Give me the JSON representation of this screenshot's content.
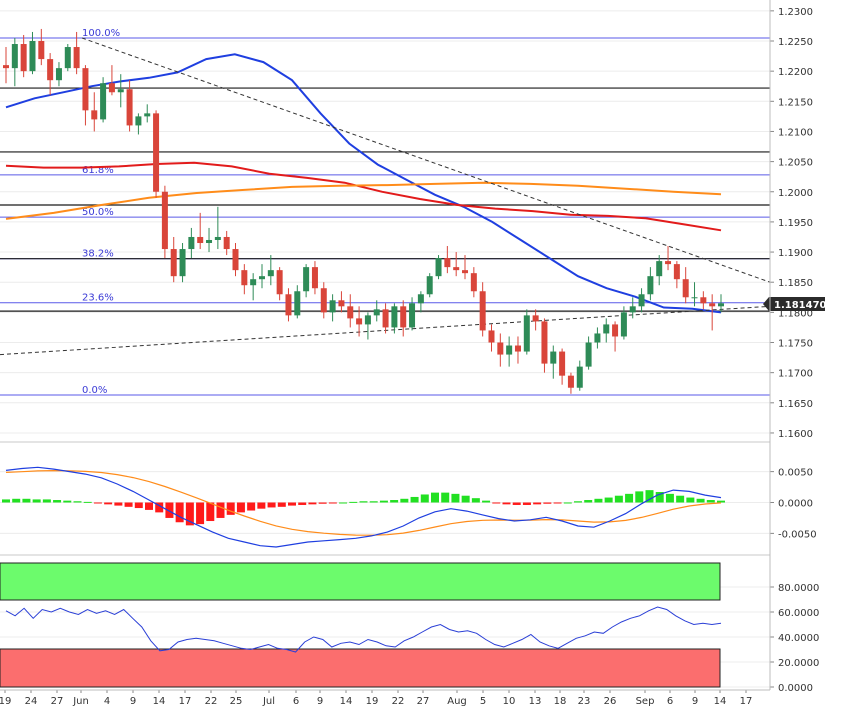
{
  "chart_data": [
    {
      "type": "candlestick",
      "pair_price_current": "1.181470",
      "y_ticks": [
        "1.2300",
        "1.2250",
        "1.2200",
        "1.2150",
        "1.2100",
        "1.2050",
        "1.2000",
        "1.1950",
        "1.1900",
        "1.1850",
        "1.1800",
        "1.1750",
        "1.1700",
        "1.1650",
        "1.1600"
      ],
      "ylim": [
        1.1585,
        1.2318
      ],
      "x_tick_labels": [
        "19",
        "24",
        "27",
        "Jun",
        "4",
        "9",
        "14",
        "17",
        "22",
        "25",
        "Jul",
        "6",
        "9",
        "14",
        "19",
        "22",
        "27",
        "Aug",
        "5",
        "10",
        "13",
        "18",
        "23",
        "26",
        "Sep",
        "6",
        "9",
        "14",
        "17"
      ],
      "fib_levels": [
        {
          "label": "100.0%",
          "price": 1.2255
        },
        {
          "label": "61.8%",
          "price": 1.2028
        },
        {
          "label": "50.0%",
          "price": 1.1958
        },
        {
          "label": "38.2%",
          "price": 1.1889
        },
        {
          "label": "23.6%",
          "price": 1.1816
        },
        {
          "label": "0.0%",
          "price": 1.1663
        }
      ],
      "horizontal_levels": [
        1.2172,
        1.2066,
        1.1978,
        1.1889,
        1.1802
      ],
      "candles": [
        [
          1.221,
          1.224,
          1.218,
          1.2205
        ],
        [
          1.2205,
          1.2255,
          1.2175,
          1.2245
        ],
        [
          1.2245,
          1.226,
          1.219,
          1.22
        ],
        [
          1.22,
          1.2265,
          1.2195,
          1.225
        ],
        [
          1.225,
          1.227,
          1.221,
          1.222
        ],
        [
          1.222,
          1.223,
          1.216,
          1.2185
        ],
        [
          1.2185,
          1.2215,
          1.2175,
          1.2205
        ],
        [
          1.2205,
          1.2245,
          1.22,
          1.224
        ],
        [
          1.224,
          1.2265,
          1.2195,
          1.2205
        ],
        [
          1.2205,
          1.221,
          1.211,
          1.2135
        ],
        [
          1.2135,
          1.2165,
          1.21,
          1.212
        ],
        [
          1.212,
          1.219,
          1.2115,
          1.218
        ],
        [
          1.218,
          1.221,
          1.216,
          1.2165
        ],
        [
          1.2165,
          1.2195,
          1.214,
          1.217
        ],
        [
          1.217,
          1.2185,
          1.21,
          1.211
        ],
        [
          1.211,
          1.213,
          1.2095,
          1.2125
        ],
        [
          1.2125,
          1.2145,
          1.2115,
          1.213
        ],
        [
          1.213,
          1.2135,
          1.199,
          1.2
        ],
        [
          1.2,
          1.201,
          1.189,
          1.1905
        ],
        [
          1.1905,
          1.1925,
          1.185,
          1.186
        ],
        [
          1.186,
          1.1915,
          1.185,
          1.1905
        ],
        [
          1.1905,
          1.194,
          1.189,
          1.1925
        ],
        [
          1.1925,
          1.1965,
          1.1905,
          1.1915
        ],
        [
          1.1915,
          1.194,
          1.19,
          1.192
        ],
        [
          1.192,
          1.1975,
          1.1905,
          1.1925
        ],
        [
          1.1925,
          1.1935,
          1.1895,
          1.1905
        ],
        [
          1.1905,
          1.1915,
          1.186,
          1.187
        ],
        [
          1.187,
          1.188,
          1.183,
          1.1845
        ],
        [
          1.1845,
          1.1865,
          1.182,
          1.1855
        ],
        [
          1.1855,
          1.188,
          1.184,
          1.186
        ],
        [
          1.186,
          1.1895,
          1.1845,
          1.187
        ],
        [
          1.187,
          1.1875,
          1.182,
          1.183
        ],
        [
          1.183,
          1.184,
          1.1785,
          1.1795
        ],
        [
          1.1795,
          1.1845,
          1.179,
          1.1835
        ],
        [
          1.1835,
          1.188,
          1.1825,
          1.1875
        ],
        [
          1.1875,
          1.1885,
          1.183,
          1.184
        ],
        [
          1.184,
          1.185,
          1.179,
          1.18
        ],
        [
          1.18,
          1.183,
          1.1785,
          1.182
        ],
        [
          1.182,
          1.1835,
          1.18,
          1.181
        ],
        [
          1.181,
          1.183,
          1.1775,
          1.179
        ],
        [
          1.179,
          1.181,
          1.176,
          1.178
        ],
        [
          1.178,
          1.18,
          1.1755,
          1.1795
        ],
        [
          1.1795,
          1.182,
          1.1785,
          1.1805
        ],
        [
          1.1805,
          1.1815,
          1.1765,
          1.1775
        ],
        [
          1.1775,
          1.1815,
          1.1765,
          1.181
        ],
        [
          1.181,
          1.182,
          1.176,
          1.1775
        ],
        [
          1.1775,
          1.1825,
          1.177,
          1.1815
        ],
        [
          1.1815,
          1.1835,
          1.18,
          1.183
        ],
        [
          1.183,
          1.1865,
          1.1825,
          1.186
        ],
        [
          1.186,
          1.1895,
          1.1855,
          1.189
        ],
        [
          1.189,
          1.191,
          1.1865,
          1.1875
        ],
        [
          1.1875,
          1.19,
          1.186,
          1.187
        ],
        [
          1.187,
          1.1895,
          1.1855,
          1.1865
        ],
        [
          1.1865,
          1.1875,
          1.1825,
          1.1835
        ],
        [
          1.1835,
          1.185,
          1.176,
          1.177
        ],
        [
          1.177,
          1.178,
          1.1735,
          1.175
        ],
        [
          1.175,
          1.1765,
          1.171,
          1.173
        ],
        [
          1.173,
          1.176,
          1.171,
          1.1745
        ],
        [
          1.1745,
          1.176,
          1.1715,
          1.1735
        ],
        [
          1.1735,
          1.1805,
          1.173,
          1.1795
        ],
        [
          1.1795,
          1.1805,
          1.177,
          1.1785
        ],
        [
          1.1785,
          1.179,
          1.17,
          1.1715
        ],
        [
          1.1715,
          1.1745,
          1.169,
          1.1735
        ],
        [
          1.1735,
          1.174,
          1.168,
          1.1695
        ],
        [
          1.1695,
          1.17,
          1.1665,
          1.1675
        ],
        [
          1.1675,
          1.172,
          1.167,
          1.171
        ],
        [
          1.171,
          1.176,
          1.1705,
          1.175
        ],
        [
          1.175,
          1.1775,
          1.174,
          1.1765
        ],
        [
          1.1765,
          1.179,
          1.175,
          1.178
        ],
        [
          1.178,
          1.1785,
          1.1735,
          1.176
        ],
        [
          1.176,
          1.181,
          1.1755,
          1.18
        ],
        [
          1.18,
          1.1825,
          1.179,
          1.181
        ],
        [
          1.181,
          1.184,
          1.18,
          1.183
        ],
        [
          1.183,
          1.1875,
          1.182,
          1.186
        ],
        [
          1.186,
          1.1895,
          1.1845,
          1.1885
        ],
        [
          1.1885,
          1.191,
          1.187,
          1.188
        ],
        [
          1.188,
          1.1885,
          1.184,
          1.1855
        ],
        [
          1.1855,
          1.1875,
          1.1815,
          1.1825
        ],
        [
          1.1825,
          1.185,
          1.181,
          1.1825
        ],
        [
          1.1825,
          1.1835,
          1.1805,
          1.1815
        ],
        [
          1.1815,
          1.183,
          1.177,
          1.181
        ],
        [
          1.181,
          1.183,
          1.18,
          1.1815
        ]
      ],
      "ma_series": [
        {
          "color": "#1f3fe0",
          "values": [
            1.214,
            1.2155,
            1.2165,
            1.2175,
            1.2183,
            1.2189,
            1.2198,
            1.222,
            1.2228,
            1.2215,
            1.2185,
            1.213,
            1.208,
            1.2045,
            1.202,
            1.1995,
            1.1975,
            1.195,
            1.192,
            1.189,
            1.186,
            1.184,
            1.1826,
            1.1808,
            1.1806,
            1.18
          ]
        },
        {
          "color": "#e21b1b",
          "values": [
            1.2043,
            1.204,
            1.204,
            1.2042,
            1.2046,
            1.2048,
            1.2042,
            1.203,
            1.2023,
            1.2015,
            1.2,
            1.1988,
            1.1978,
            1.1972,
            1.1968,
            1.1962,
            1.196,
            1.1956,
            1.1946,
            1.1936
          ]
        },
        {
          "color": "#ff8c1a",
          "values": [
            1.1955,
            1.1965,
            1.1978,
            1.199,
            1.1998,
            1.2003,
            1.2008,
            1.201,
            1.2011,
            1.2013,
            1.2015,
            1.2013,
            1.201,
            1.2005,
            1.2,
            1.1996
          ]
        }
      ],
      "trendlines": [
        {
          "style": "dashed",
          "from": [
            1.2255
          ],
          "to": [
            1.185
          ]
        },
        {
          "style": "dashed",
          "from": [
            1.173
          ],
          "to": [
            1.181
          ]
        }
      ]
    },
    {
      "type": "macd",
      "y_ticks": [
        "0.0050",
        "0.0000",
        "-0.0050"
      ],
      "ylim": [
        -0.0085,
        0.0085
      ],
      "histogram": [
        0.0005,
        0.0006,
        0.0006,
        0.0005,
        0.0005,
        0.0004,
        0.0003,
        0.0002,
        0.0001,
        -0.0001,
        -0.0003,
        -0.0005,
        -0.0007,
        -0.0009,
        -0.0012,
        -0.0016,
        -0.0025,
        -0.0032,
        -0.0037,
        -0.0035,
        -0.003,
        -0.0025,
        -0.002,
        -0.0016,
        -0.0013,
        -0.001,
        -0.0008,
        -0.0007,
        -0.0005,
        -0.0004,
        -0.0003,
        -0.0002,
        -0.0001,
        0.0,
        0.0001,
        0.0002,
        0.0002,
        0.0003,
        0.0004,
        0.0006,
        0.0009,
        0.0013,
        0.0016,
        0.0016,
        0.0014,
        0.0011,
        0.0007,
        0.0003,
        -0.0001,
        -0.0003,
        -0.0004,
        -0.0004,
        -0.0003,
        -0.0002,
        -0.0001,
        0.0,
        0.0002,
        0.0004,
        0.0006,
        0.0008,
        0.0011,
        0.0014,
        0.0018,
        0.002,
        0.0017,
        0.0014,
        0.0011,
        0.0008,
        0.0006,
        0.0004,
        0.0003
      ]
    },
    {
      "type": "rsi",
      "y_ticks": [
        "80.0000",
        "60.0000",
        "40.0000",
        "20.0000",
        "0.0000"
      ],
      "ylim": [
        0,
        100
      ],
      "overbought": 70,
      "oversold": 30,
      "values": [
        61,
        57,
        63,
        55,
        62,
        60,
        63,
        60,
        58,
        62,
        59,
        61,
        58,
        62,
        55,
        48,
        37,
        29,
        30,
        36,
        38,
        39,
        38,
        37,
        35,
        33,
        31,
        30,
        32,
        34,
        31,
        30,
        28,
        36,
        40,
        38,
        32,
        35,
        36,
        34,
        38,
        36,
        33,
        32,
        37,
        40,
        44,
        48,
        50,
        46,
        44,
        45,
        43,
        38,
        34,
        32,
        35,
        38,
        42,
        36,
        33,
        31,
        35,
        39,
        41,
        44,
        43,
        48,
        52,
        55,
        57,
        61,
        64,
        62,
        57,
        53,
        50,
        51,
        50,
        51
      ]
    }
  ]
}
